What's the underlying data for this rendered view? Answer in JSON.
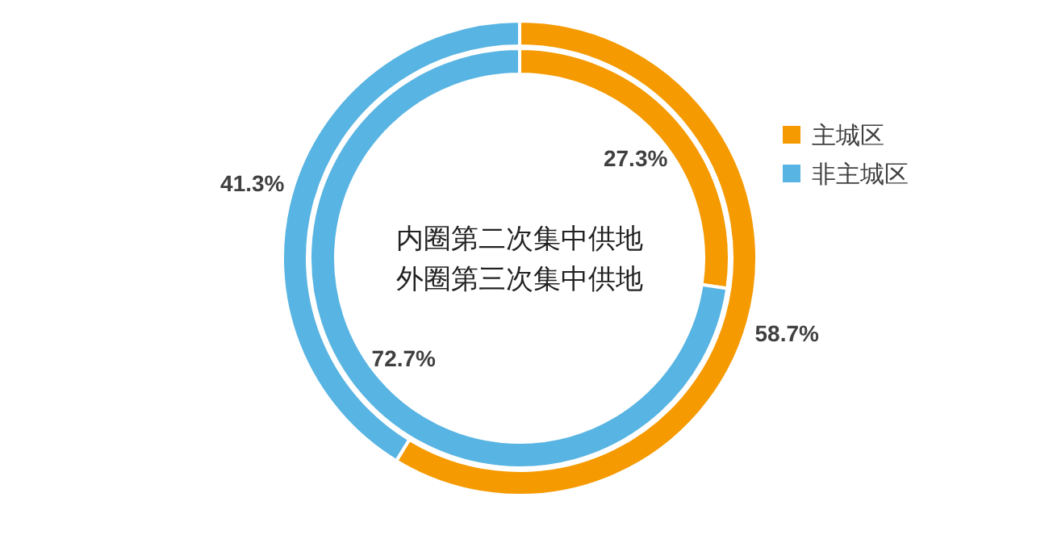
{
  "chart_data": {
    "type": "donut",
    "categories": [
      "主城区",
      "非主城区"
    ],
    "colors": [
      "#f59a00",
      "#58b4e2"
    ],
    "series": [
      {
        "values": [
          27.3,
          72.7
        ],
        "value_labels": [
          "27.3%",
          "72.7%"
        ]
      },
      {
        "values": [
          58.7,
          41.3
        ],
        "value_labels": [
          "58.7%",
          "41.3%"
        ]
      }
    ],
    "legend": "right",
    "annotations": [
      "内圈第二次集中供地",
      "外圈第三次集中供地"
    ]
  }
}
